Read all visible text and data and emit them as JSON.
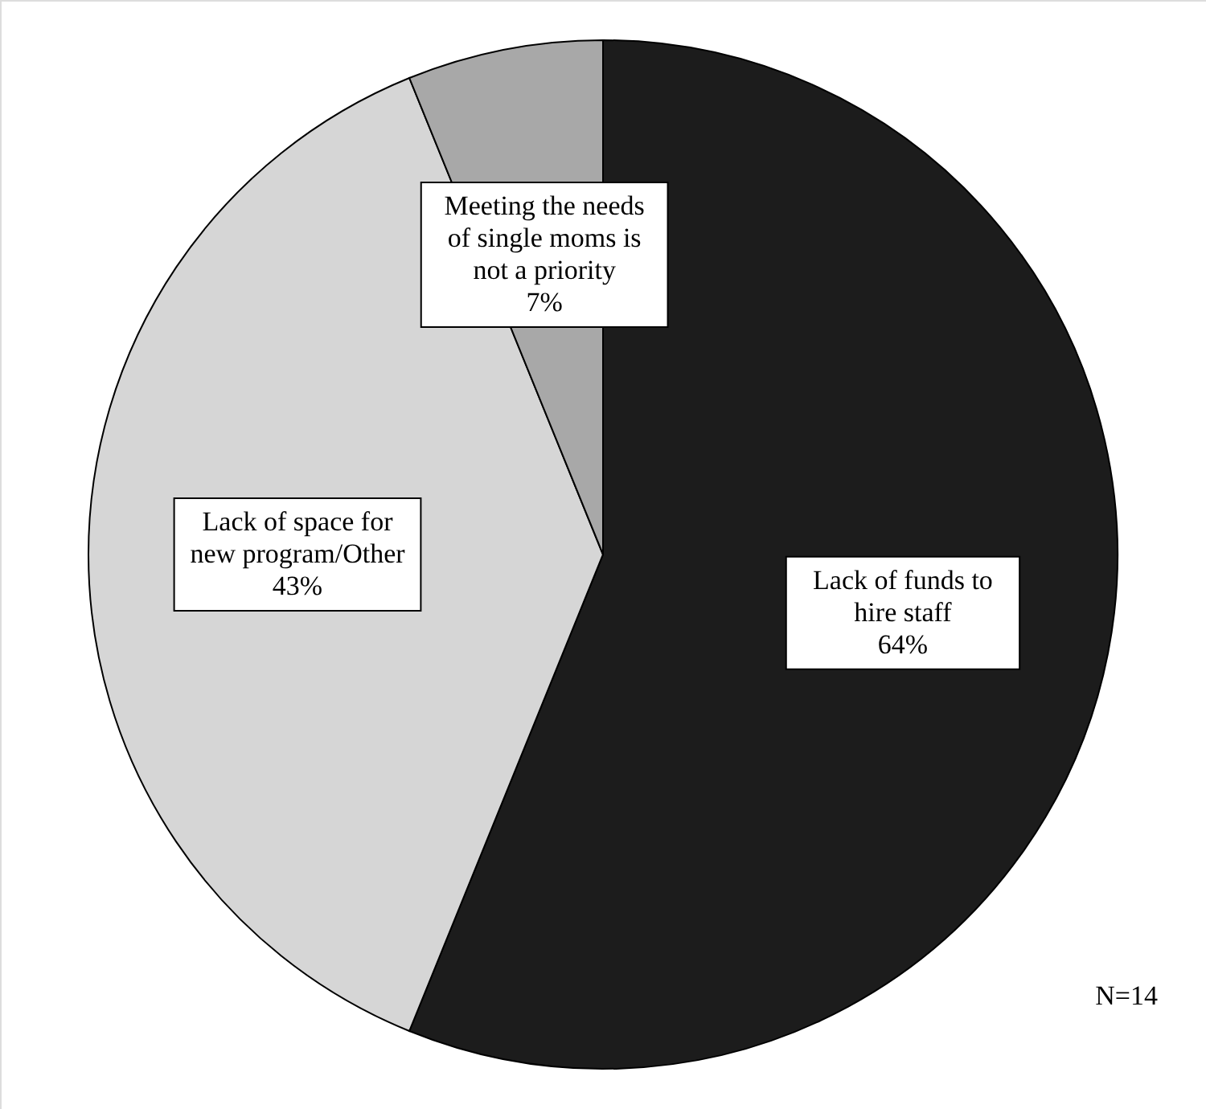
{
  "chart_data": {
    "type": "pie",
    "categories": [
      "Lack of funds to hire staff",
      "Lack of space for new program/Other",
      "Meeting the needs of single moms is not a priority"
    ],
    "values": [
      64,
      43,
      7
    ],
    "value_labels": [
      "64%",
      "43%",
      "7%"
    ],
    "colors": [
      "#1c1c1c",
      "#d6d6d6",
      "#a8a8a8"
    ],
    "annotations": [
      "N=14"
    ]
  }
}
